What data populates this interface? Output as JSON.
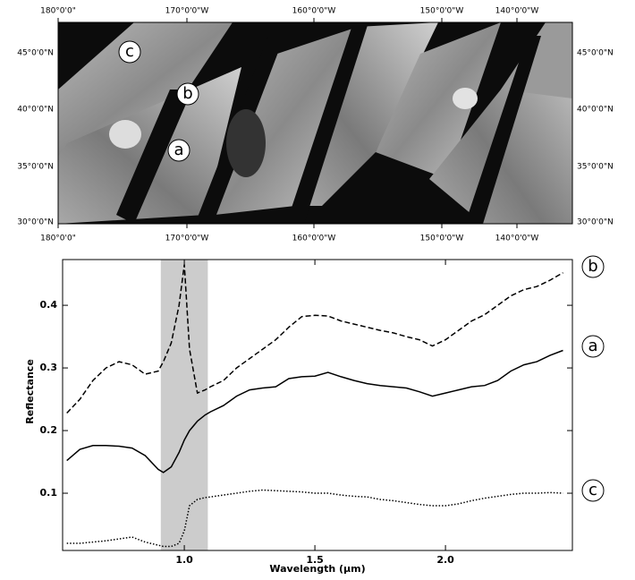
{
  "map": {
    "lon_labels": [
      "180°0'0\"",
      "170°0'0\"W",
      "160°0'0\"W",
      "150°0'0\"W",
      "140°0'0\"W"
    ],
    "lat_labels": [
      "45°0'0\"N",
      "40°0'0\"N",
      "35°0'0\"N",
      "30°0'0\"N"
    ]
  },
  "chart_data": {
    "type": "line",
    "xlabel": "Wavelength (µm)",
    "ylabel": "Reflectance",
    "x": [
      0.55,
      0.6,
      0.65,
      0.7,
      0.75,
      0.8,
      0.85,
      0.9,
      0.92,
      0.95,
      0.98,
      1.0,
      1.02,
      1.05,
      1.08,
      1.1,
      1.15,
      1.2,
      1.25,
      1.3,
      1.35,
      1.4,
      1.45,
      1.5,
      1.55,
      1.6,
      1.65,
      1.7,
      1.75,
      1.8,
      1.85,
      1.9,
      1.95,
      2.0,
      2.05,
      2.1,
      2.15,
      2.2,
      2.25,
      2.3,
      2.35,
      2.4,
      2.45
    ],
    "series": [
      {
        "name": "a",
        "color": "#000000",
        "line_style": "solid",
        "values": [
          0.152,
          0.17,
          0.176,
          0.176,
          0.175,
          0.172,
          0.16,
          0.138,
          0.133,
          0.142,
          0.165,
          0.185,
          0.2,
          0.215,
          0.225,
          0.23,
          0.24,
          0.255,
          0.265,
          0.268,
          0.27,
          0.283,
          0.286,
          0.287,
          0.293,
          0.286,
          0.28,
          0.275,
          0.272,
          0.27,
          0.268,
          0.262,
          0.255,
          0.26,
          0.265,
          0.27,
          0.272,
          0.28,
          0.295,
          0.305,
          0.31,
          0.32,
          0.328
        ]
      },
      {
        "name": "b",
        "color": "#000000",
        "line_style": "dashed",
        "values": [
          0.228,
          0.25,
          0.28,
          0.3,
          0.31,
          0.305,
          0.29,
          0.295,
          0.31,
          0.34,
          0.4,
          0.465,
          0.33,
          0.26,
          0.265,
          0.27,
          0.28,
          0.3,
          0.315,
          0.33,
          0.345,
          0.365,
          0.382,
          0.384,
          0.383,
          0.375,
          0.37,
          0.365,
          0.36,
          0.356,
          0.35,
          0.345,
          0.335,
          0.345,
          0.36,
          0.375,
          0.385,
          0.4,
          0.415,
          0.425,
          0.43,
          0.44,
          0.452
        ]
      },
      {
        "name": "c",
        "color": "#000000",
        "line_style": "dotted",
        "values": [
          0.02,
          0.02,
          0.022,
          0.024,
          0.027,
          0.03,
          0.022,
          0.017,
          0.015,
          0.015,
          0.02,
          0.04,
          0.08,
          0.09,
          0.093,
          0.094,
          0.097,
          0.1,
          0.103,
          0.105,
          0.104,
          0.103,
          0.102,
          0.1,
          0.1,
          0.097,
          0.095,
          0.094,
          0.09,
          0.088,
          0.085,
          0.082,
          0.08,
          0.08,
          0.083,
          0.088,
          0.092,
          0.095,
          0.098,
          0.1,
          0.1,
          0.101,
          0.1
        ]
      }
    ],
    "highlight_band": [
      0.91,
      1.09
    ],
    "xlim": [
      0.534,
      2.486
    ],
    "ylim": [
      0.0086,
      0.473
    ],
    "xticks": [
      {
        "value": 1,
        "label": "1.0"
      },
      1.5,
      {
        "value": 2,
        "label": "2.0"
      }
    ],
    "yticks": [
      0.1,
      0.2,
      0.3,
      0.4
    ]
  }
}
